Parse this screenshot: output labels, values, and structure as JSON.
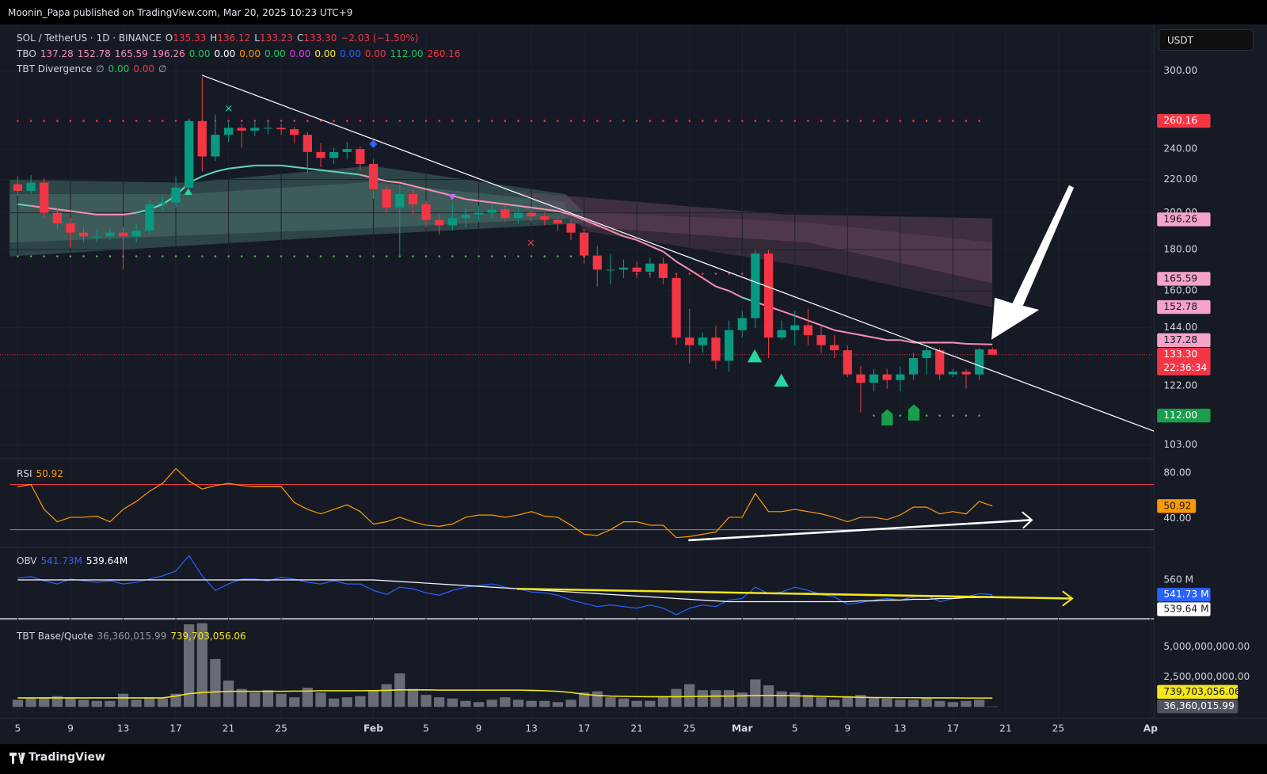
{
  "header": {
    "text": "Moonin_Papa published on TradingView.com, Mar 20, 2025 10:23 UTC+9"
  },
  "footer": {
    "brand": "TradingView"
  },
  "currency_button": "USDT",
  "chart": {
    "type": "candlestick",
    "symbol": "SOL / TetherUS · 1D · BINANCE",
    "ohlc": [
      {
        "key": "O",
        "value": 135.33,
        "label": "135.33"
      },
      {
        "key": "H",
        "value": 136.12,
        "label": "136.12"
      },
      {
        "key": "L",
        "value": 133.23,
        "label": "133.23"
      },
      {
        "key": "C",
        "value": 133.3,
        "label": "133.30"
      }
    ],
    "change": "−2.03 (−1.50%)",
    "up_color": "#089981",
    "down_color": "#f23645",
    "candles": {
      "first_date": "2025-01-05",
      "open": [
        217,
        213,
        218,
        200,
        194,
        189,
        187,
        187,
        189,
        187,
        190,
        205,
        206,
        215,
        260,
        235,
        250,
        255,
        253,
        255,
        255,
        254,
        250,
        238,
        234,
        238,
        240,
        230,
        214,
        203,
        211,
        205,
        196,
        193,
        197,
        199,
        200,
        202,
        197,
        200,
        198,
        196,
        194,
        189,
        177,
        170,
        170,
        171,
        169,
        173,
        166,
        140,
        137,
        140,
        131,
        143,
        148,
        178,
        140,
        143,
        145,
        141,
        137,
        135,
        126,
        123,
        126,
        124,
        126,
        132,
        135,
        126,
        127,
        126,
        135.33
      ],
      "high": [
        222,
        223,
        221,
        203,
        197,
        192,
        191,
        192,
        192,
        194,
        208,
        210,
        222,
        262,
        295,
        265,
        259,
        258,
        259,
        260,
        258,
        256,
        252,
        244,
        241,
        245,
        242,
        233,
        216,
        217,
        214,
        207,
        199,
        206,
        203,
        204,
        205,
        204,
        204,
        202,
        200,
        198,
        196,
        191,
        182,
        178,
        175,
        174,
        176,
        176,
        168,
        152,
        142,
        145,
        147,
        151,
        180,
        180,
        147,
        151,
        152,
        145,
        141,
        137,
        129,
        128,
        128,
        129,
        134,
        137,
        136,
        128,
        128,
        136,
        136.12
      ],
      "low": [
        210,
        211,
        197,
        191,
        181,
        184,
        184,
        185,
        170,
        184,
        188,
        201,
        203,
        213,
        225,
        232,
        245,
        241,
        249,
        250,
        250,
        244,
        224,
        228,
        230,
        233,
        226,
        208,
        200,
        176,
        199,
        192,
        188,
        190,
        192,
        195,
        197,
        195,
        194,
        195,
        193,
        190,
        185,
        173,
        162,
        163,
        166,
        166,
        166,
        163,
        137,
        130,
        134,
        128,
        127,
        140,
        144,
        132,
        139,
        137,
        137,
        134,
        132,
        125,
        113,
        120,
        121,
        120,
        124,
        126,
        124,
        125,
        121,
        124,
        133.23
      ],
      "close": [
        213,
        218,
        200,
        194,
        189,
        187,
        187,
        189,
        187,
        190,
        205,
        206,
        215,
        260,
        235,
        250,
        255,
        253,
        255,
        255,
        254,
        250,
        238,
        234,
        238,
        240,
        230,
        214,
        203,
        211,
        205,
        196,
        193,
        197,
        199,
        200,
        202,
        197,
        200,
        198,
        196,
        194,
        189,
        177,
        170,
        170,
        171,
        169,
        173,
        166,
        140,
        137,
        140,
        131,
        143,
        148,
        178,
        140,
        143,
        145,
        141,
        137,
        135,
        126,
        123,
        126,
        124,
        126,
        132,
        135,
        126,
        127,
        126,
        135.33,
        133.3
      ]
    },
    "ma": {
      "color_up": "#5fd3bc",
      "color_down": "#f48fb1",
      "values": [
        205,
        204,
        203,
        202,
        201,
        200,
        199,
        199,
        199,
        200,
        202,
        205,
        210,
        218,
        222,
        225,
        227,
        228,
        229,
        229,
        229,
        228,
        227,
        226,
        225,
        224,
        223,
        221,
        219,
        218,
        216,
        214,
        212,
        210,
        208,
        207,
        206,
        205,
        204,
        203,
        202,
        201,
        199,
        196,
        193,
        190,
        187,
        185,
        182,
        179,
        174,
        170,
        166,
        162,
        160,
        157,
        155,
        153,
        151,
        149,
        147,
        145,
        143,
        142,
        141,
        140,
        139,
        139,
        138,
        138,
        138,
        138,
        137.5,
        137.4,
        137.28
      ]
    },
    "levels": [
      {
        "value": 260.16,
        "start": "2025-01-05",
        "end": "2025-03-20",
        "color": "#f23645"
      },
      {
        "value": 176.6,
        "start": "2025-01-05",
        "end": "2025-02-17",
        "color": "#4caf50"
      },
      {
        "value": 168,
        "start": "2025-02-21",
        "end": "2025-03-01",
        "color": "#f23645"
      },
      {
        "value": 112,
        "start": "2025-03-11",
        "end": "2025-03-20",
        "color": "#4caf50"
      }
    ],
    "ylim": [
      99.5,
      339
    ],
    "log": true,
    "grid": true,
    "yticks": [
      {
        "value": 300,
        "label": "300.00"
      },
      {
        "value": 240,
        "label": "240.00"
      },
      {
        "value": 220,
        "label": "220.00"
      },
      {
        "value": 200,
        "label": "200.00"
      },
      {
        "value": 180,
        "label": "180.00"
      },
      {
        "value": 160,
        "label": "160.00"
      },
      {
        "value": 144,
        "label": "144.00"
      },
      {
        "value": 122,
        "label": "122.00"
      },
      {
        "value": 103,
        "label": "103.00"
      }
    ],
    "xticks": [
      {
        "value": "2025-01-05",
        "label": "5"
      },
      {
        "value": "2025-01-09",
        "label": "9"
      },
      {
        "value": "2025-01-13",
        "label": "13"
      },
      {
        "value": "2025-01-17",
        "label": "17"
      },
      {
        "value": "2025-01-21",
        "label": "21"
      },
      {
        "value": "2025-01-25",
        "label": "25"
      },
      {
        "value": "2025-02-01",
        "label": "Feb"
      },
      {
        "value": "2025-02-05",
        "label": "5"
      },
      {
        "value": "2025-02-09",
        "label": "9"
      },
      {
        "value": "2025-02-13",
        "label": "13"
      },
      {
        "value": "2025-02-17",
        "label": "17"
      },
      {
        "value": "2025-02-21",
        "label": "21"
      },
      {
        "value": "2025-02-25",
        "label": "25"
      },
      {
        "value": "2025-03-01",
        "label": "Mar"
      },
      {
        "value": "2025-03-05",
        "label": "5"
      },
      {
        "value": "2025-03-09",
        "label": "9"
      },
      {
        "value": "2025-03-13",
        "label": "13"
      },
      {
        "value": "2025-03-17",
        "label": "17"
      },
      {
        "value": "2025-03-21",
        "label": "21"
      },
      {
        "value": "2025-03-25",
        "label": "25"
      },
      {
        "value": "2025-04-01",
        "label": "Ap"
      }
    ],
    "tbo": {
      "name": "TBO",
      "items": [
        {
          "value": 137.28,
          "label": "137.28",
          "color": "#f48fb1"
        },
        {
          "value": 152.78,
          "label": "152.78",
          "color": "#f48fb1"
        },
        {
          "value": 165.59,
          "label": "165.59",
          "color": "#f48fb1"
        },
        {
          "value": 196.26,
          "label": "196.26",
          "color": "#f48fb1"
        },
        {
          "value": 0,
          "label": "0.00",
          "color": "#22c55e"
        },
        {
          "value": 0,
          "label": "0.00",
          "color": "#ffffff"
        },
        {
          "value": 0,
          "label": "0.00",
          "color": "#ff9800"
        },
        {
          "value": 0,
          "label": "0.00",
          "color": "#22c55e"
        },
        {
          "value": 0,
          "label": "0.00",
          "color": "#e040fb"
        },
        {
          "value": 0,
          "label": "0.00",
          "color": "#ffeb3b"
        },
        {
          "value": 0,
          "label": "0.00",
          "color": "#2962ff"
        },
        {
          "value": 0,
          "label": "0.00",
          "color": "#f23645"
        },
        {
          "value": 112,
          "label": "112.00",
          "color": "#22c55e"
        },
        {
          "value": 260.16,
          "label": "260.16",
          "color": "#f23645"
        }
      ]
    },
    "divergence": {
      "name": "TBT Divergence",
      "items": [
        {
          "label": "∅",
          "color": "#b2b5be"
        },
        {
          "value": 0,
          "label": "0.00",
          "color": "#22c55e"
        },
        {
          "value": 0,
          "label": "0.00",
          "color": "#f23645"
        },
        {
          "label": "∅",
          "color": "#b2b5be"
        }
      ]
    },
    "price_badges": [
      {
        "value": 260.16,
        "label": "260.16",
        "bg": "#f23645",
        "fg": "#ffffff"
      },
      {
        "value": 196.26,
        "label": "196.26",
        "bg": "#f5a3c7",
        "fg": "#131722"
      },
      {
        "value": 165.59,
        "label": "165.59",
        "bg": "#f5a3c7",
        "fg": "#131722"
      },
      {
        "value": 152.78,
        "label": "152.78",
        "bg": "#f5a3c7",
        "fg": "#131722"
      },
      {
        "value": 137.28,
        "label": "137.28",
        "bg": "#f5a3c7",
        "fg": "#131722"
      },
      {
        "value": 133.3,
        "label": "133.30",
        "sub": "22:36:34",
        "bg": "#f23645",
        "fg": "#ffffff"
      },
      {
        "value": 112,
        "label": "112.00",
        "bg": "#1b9e4b",
        "fg": "#ffffff"
      }
    ]
  },
  "rsi": {
    "name": "RSI",
    "color": "#ff9800",
    "ylim": [
      15.7,
      90.7
    ],
    "yticks": [
      {
        "value": 80,
        "label": "80.00"
      },
      {
        "value": 40,
        "label": "40.00"
      }
    ],
    "bands": [
      {
        "value": 70,
        "color": "#f23645"
      },
      {
        "value": 30,
        "color": "#4caf50"
      }
    ],
    "values": [
      68,
      70,
      48,
      37,
      41,
      41,
      42,
      37,
      48,
      55,
      64,
      71,
      84,
      73,
      66,
      69,
      71,
      69,
      68,
      68,
      68,
      54,
      48,
      44,
      48,
      52,
      46,
      35,
      37,
      41,
      37,
      34,
      33,
      35,
      41,
      43,
      43,
      41,
      43,
      46,
      42,
      41,
      34,
      26,
      25,
      30,
      37,
      37,
      34,
      34,
      23,
      24,
      26,
      28,
      41,
      41,
      62,
      46,
      46,
      48,
      46,
      44,
      41,
      37,
      41,
      41,
      39,
      43,
      50,
      50,
      44,
      46,
      44,
      55,
      50.92
    ]
  },
  "obv": {
    "name": "OBV",
    "ylim": [
      512,
      597
    ],
    "yticks": [
      {
        "value": 560,
        "label": "560 M"
      }
    ],
    "series": [
      {
        "color": "#2962ff",
        "fg": "#ffffff",
        "legend_label": "541.73M",
        "badge_label": "541.73 M",
        "values": [
          562,
          564,
          559,
          555,
          561,
          559,
          557,
          559,
          555,
          557,
          561,
          565,
          571,
          590,
          565,
          547,
          555,
          561,
          561,
          559,
          563,
          561,
          557,
          555,
          559,
          555,
          555,
          547,
          542,
          551,
          549,
          544,
          541,
          547,
          551,
          553,
          555,
          551,
          549,
          545,
          544,
          541,
          535,
          531,
          527,
          529,
          527,
          525,
          529,
          525,
          517,
          525,
          529,
          527,
          535,
          537,
          551,
          543,
          545,
          551,
          547,
          542,
          539,
          530,
          532,
          535,
          537,
          535,
          539,
          541,
          533,
          537,
          539,
          543,
          541.73
        ]
      },
      {
        "color": "#ffffff",
        "fg": "#131722",
        "legend_label": "539.64M",
        "badge_label": "539.64 M",
        "values": [
          560,
          560,
          560,
          560,
          560,
          560,
          560,
          560,
          560,
          560,
          560,
          560,
          560,
          560,
          560,
          560,
          560,
          560,
          560,
          560,
          560,
          560,
          560,
          560,
          560,
          560,
          560,
          560,
          559,
          558,
          557,
          556,
          555,
          554,
          553,
          552,
          551,
          550,
          549,
          548,
          547,
          546,
          545,
          544,
          543,
          542,
          541,
          540,
          539,
          538,
          537,
          536,
          535,
          534,
          533,
          533,
          533,
          533,
          533,
          533,
          533,
          533,
          533,
          533,
          534,
          534,
          535,
          535,
          536,
          536,
          537,
          537,
          538,
          538,
          539.64
        ]
      }
    ]
  },
  "volume": {
    "name": "TBT Base/Quote",
    "color": "#787b86",
    "ylim": [
      -405000000,
      7030000000
    ],
    "yticks": [
      {
        "value": 5000000000,
        "label": "5,000,000,000.00"
      },
      {
        "value": 2500000000,
        "label": "2,500,000,000.00"
      }
    ],
    "values": [
      600000000.0,
      700000000.0,
      800000000.0,
      900000000.0,
      800000000.0,
      600000000.0,
      500000000.0,
      500000000.0,
      1100000000.0,
      600000000.0,
      800000000.0,
      700000000.0,
      1100000000.0,
      6900000000.0,
      7000000000.0,
      4000000000.0,
      2200000000.0,
      1500000000.0,
      1200000000.0,
      1400000000.0,
      1100000000.0,
      800000000.0,
      1600000000.0,
      1200000000.0,
      700000000.0,
      800000000.0,
      900000000.0,
      1400000000.0,
      1900000000.0,
      2800000000.0,
      1500000000.0,
      1000000000.0,
      800000000.0,
      700000000.0,
      500000000.0,
      400000000.0,
      600000000.0,
      800000000.0,
      600000000.0,
      500000000.0,
      500000000.0,
      400000000.0,
      600000000.0,
      1200000000.0,
      1300000000.0,
      800000000.0,
      700000000.0,
      500000000.0,
      500000000.0,
      800000000.0,
      1500000000.0,
      1900000000.0,
      1400000000.0,
      1400000000.0,
      1400000000.0,
      1200000000.0,
      2300000000.0,
      1800000000.0,
      1300000000.0,
      1200000000.0,
      1000000000.0,
      800000000.0,
      600000000.0,
      900000000.0,
      1000000000.0,
      800000000.0,
      700000000.0,
      600000000.0,
      600000000.0,
      700000000.0,
      500000000.0,
      400000000.0,
      500000000.0,
      600000000.0,
      36360015.99
    ],
    "last_label": "36,360,015.99",
    "bg": "#50535e",
    "fg": "#ffffff",
    "ma": {
      "color": "#f5e71a",
      "fg": "#131722",
      "last_label": "739,703,056.06",
      "values": [
        750000000.0,
        750000000.0,
        750000000.0,
        750000000.0,
        750000000.0,
        750000000.0,
        750000000.0,
        750000000.0,
        750000000.0,
        750000000.0,
        750000000.0,
        750000000.0,
        900000000.0,
        1100000000.0,
        1200000000.0,
        1250000000.0,
        1300000000.0,
        1300000000.0,
        1300000000.0,
        1300000000.0,
        1300000000.0,
        1320000000.0,
        1320000000.0,
        1350000000.0,
        1350000000.0,
        1350000000.0,
        1350000000.0,
        1360000000.0,
        1380000000.0,
        1420000000.0,
        1420000000.0,
        1420000000.0,
        1400000000.0,
        1400000000.0,
        1400000000.0,
        1400000000.0,
        1400000000.0,
        1400000000.0,
        1400000000.0,
        1380000000.0,
        1350000000.0,
        1300000000.0,
        1200000000.0,
        1050000000.0,
        950000000.0,
        900000000.0,
        880000000.0,
        860000000.0,
        850000000.0,
        850000000.0,
        850000000.0,
        860000000.0,
        880000000.0,
        900000000.0,
        900000000.0,
        920000000.0,
        950000000.0,
        950000000.0,
        950000000.0,
        930000000.0,
        900000000.0,
        880000000.0,
        850000000.0,
        830000000.0,
        800000000.0,
        780000000.0,
        770000000.0,
        760000000.0,
        760000000.0,
        750000000.0,
        750000000.0,
        750000000.0,
        740000000.0,
        740000000.0,
        739703056.06
      ]
    }
  }
}
